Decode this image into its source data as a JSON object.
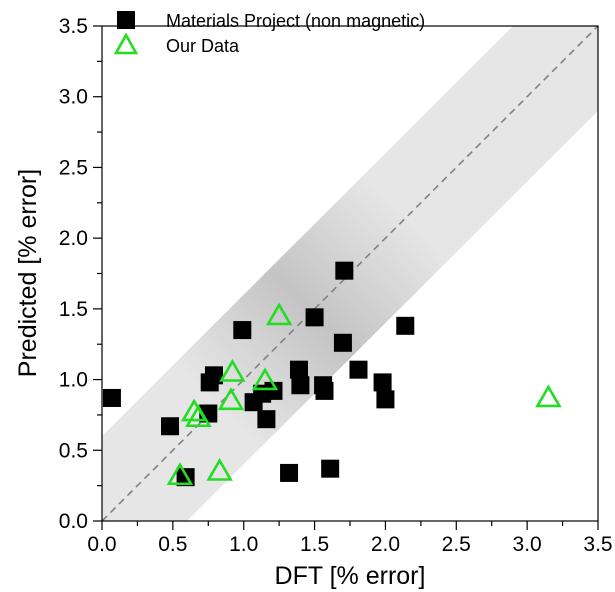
{
  "chart_data": {
    "type": "scatter",
    "xlabel": "DFT [% error]",
    "ylabel": "Predicted [% error]",
    "xlim": [
      0,
      3.5
    ],
    "ylim": [
      0,
      3.5
    ],
    "x_ticks": [
      "0.0",
      "0.5",
      "1.0",
      "1.5",
      "2.0",
      "2.5",
      "3.0",
      "3.5"
    ],
    "y_ticks": [
      "0.0",
      "0.5",
      "1.0",
      "1.5",
      "2.0",
      "2.5",
      "3.0",
      "3.5"
    ],
    "reference_line": "y = x (dashed)",
    "band": "shaded region around y = x",
    "legend_position": "top-left",
    "series": [
      {
        "name": "Materials Project (non magnetic)",
        "marker": "filled-square",
        "color": "#000000",
        "points": [
          [
            0.07,
            0.87
          ],
          [
            0.48,
            0.67
          ],
          [
            0.59,
            0.31
          ],
          [
            0.75,
            0.76
          ],
          [
            0.76,
            0.98
          ],
          [
            0.79,
            1.03
          ],
          [
            0.99,
            1.35
          ],
          [
            1.07,
            0.84
          ],
          [
            1.13,
            0.9
          ],
          [
            1.16,
            0.72
          ],
          [
            1.21,
            0.92
          ],
          [
            1.32,
            0.34
          ],
          [
            1.39,
            1.07
          ],
          [
            1.4,
            0.96
          ],
          [
            1.5,
            1.44
          ],
          [
            1.56,
            0.96
          ],
          [
            1.57,
            0.92
          ],
          [
            1.61,
            0.37
          ],
          [
            1.7,
            1.26
          ],
          [
            1.71,
            1.77
          ],
          [
            1.81,
            1.07
          ],
          [
            1.98,
            0.98
          ],
          [
            2.0,
            0.86
          ],
          [
            2.14,
            1.38
          ]
        ]
      },
      {
        "name": "Our Data",
        "marker": "open-triangle",
        "color": "#22dd22",
        "points": [
          [
            0.55,
            0.32
          ],
          [
            0.65,
            0.77
          ],
          [
            0.68,
            0.73
          ],
          [
            0.83,
            0.35
          ],
          [
            0.91,
            0.85
          ],
          [
            0.92,
            1.05
          ],
          [
            1.15,
            0.99
          ],
          [
            1.25,
            1.45
          ],
          [
            3.15,
            0.87
          ]
        ]
      }
    ]
  }
}
